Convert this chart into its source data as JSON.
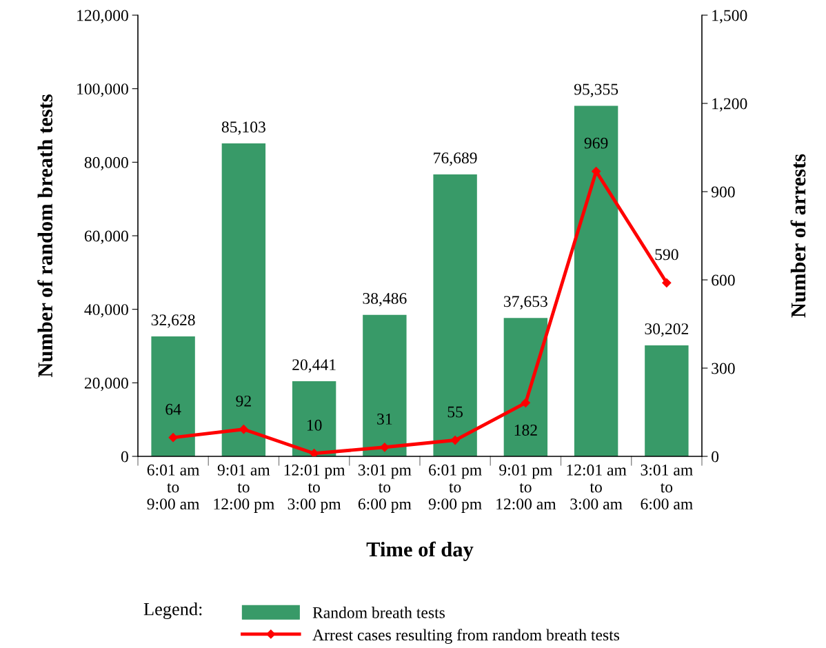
{
  "chart_data": {
    "type": "bar",
    "xlabel": "Time of day",
    "ylabel": "Number of random breath tests",
    "y2label": "Number of arrests",
    "categories": [
      "6:01 am\nto\n9:00 am",
      "9:01 am\nto\n12:00 pm",
      "12:01 pm\nto\n3:00 pm",
      "3:01 pm\nto\n6:00 pm",
      "6:01 pm\nto\n9:00 pm",
      "9:01 pm\nto\n12:00 am",
      "12:01 am\nto\n3:00 am",
      "3:01 am\nto\n6:00 am"
    ],
    "series": [
      {
        "name": "Random breath tests",
        "color": "#389a68",
        "values": [
          32628,
          85103,
          20441,
          38486,
          76689,
          37653,
          95355,
          30202
        ],
        "value_labels": [
          "32,628",
          "85,103",
          "20,441",
          "38,486",
          "76,689",
          "37,653",
          "95,355",
          "30,202"
        ]
      },
      {
        "name": "Arrest cases resulting from random breath tests",
        "type": "line",
        "axis": "y2",
        "color": "#ff0000",
        "marker": "diamond",
        "values": [
          64,
          92,
          10,
          31,
          55,
          182,
          969,
          590
        ],
        "value_labels": [
          "64",
          "92",
          "10",
          "31",
          "55",
          "182",
          "969",
          "590"
        ]
      }
    ],
    "ylim": [
      0,
      120000
    ],
    "yticks": [
      {
        "value": 0,
        "label": "0"
      },
      {
        "value": 20000,
        "label": "20,000"
      },
      {
        "value": 40000,
        "label": "40,000"
      },
      {
        "value": 60000,
        "label": "60,000"
      },
      {
        "value": 80000,
        "label": "80,000"
      },
      {
        "value": 100000,
        "label": "100,000"
      },
      {
        "value": 120000,
        "label": "120,000"
      }
    ],
    "y2lim": [
      0,
      1500
    ],
    "y2ticks": [
      {
        "value": 0,
        "label": "0"
      },
      {
        "value": 300,
        "label": "300"
      },
      {
        "value": 600,
        "label": "600"
      },
      {
        "value": 900,
        "label": "900"
      },
      {
        "value": 1200,
        "label": "1,200"
      },
      {
        "value": 1500,
        "label": "1,500"
      }
    ],
    "legend": "bottom",
    "legend_title": "Legend:",
    "grid": false
  }
}
